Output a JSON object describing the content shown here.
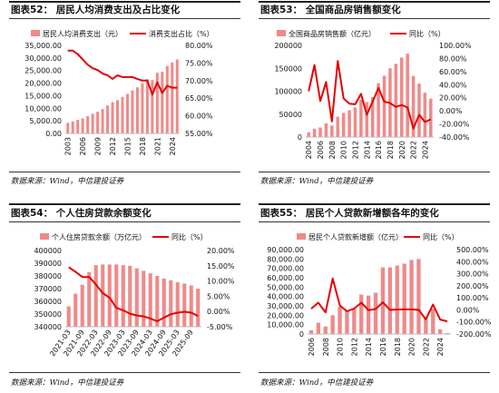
{
  "charts": [
    {
      "title": "图表52：  居民人均消费支出及占比变化",
      "source": "数据来源：Wind，中信建投证券",
      "chart_data": {
        "type": "bar",
        "legend": [
          "居民人均消费支出（元）",
          "消费支出占比（%）"
        ],
        "x": [
          2003,
          2004,
          2005,
          2006,
          2007,
          2008,
          2009,
          2010,
          2011,
          2012,
          2013,
          2014,
          2015,
          2016,
          2017,
          2018,
          2019,
          2020,
          2021,
          2022,
          2023,
          2024,
          2025
        ],
        "xticks": [
          "2003",
          "2006",
          "2009",
          "2012",
          "2015",
          "2018",
          "2021",
          "2024"
        ],
        "series": [
          {
            "name": "居民人均消费支出（元）",
            "kind": "bar",
            "axis": "left",
            "values": [
              4200,
              4800,
              5400,
              6000,
              6900,
              7800,
              8600,
              9700,
              11100,
              12400,
              13220,
              14491,
              15712,
              17111,
              18322,
              19853,
              21559,
              21210,
              24100,
              24538,
              26796,
              28227,
              29400
            ]
          },
          {
            "name": "消费支出占比（%）",
            "kind": "line",
            "axis": "right",
            "values": [
              78.5,
              78.5,
              77.5,
              76.0,
              74.5,
              73.5,
              73.0,
              72.0,
              71.5,
              70.5,
              71.5,
              71.0,
              71.0,
              71.0,
              70.5,
              70.0,
              70.0,
              66.0,
              69.5,
              66.5,
              68.5,
              68.0,
              68.0
            ]
          }
        ],
        "ylim_left": [
          0,
          35000
        ],
        "yticks_left": [
          "0.00",
          "5,000.00",
          "10,000.00",
          "15,000.00",
          "20,000.00",
          "25,000.00",
          "30,000.00",
          "35,000.00"
        ],
        "ylim_right": [
          55,
          80
        ],
        "yticks_right": [
          "55.00%",
          "60.00%",
          "65.00%",
          "70.00%",
          "75.00%",
          "80.00%"
        ]
      }
    },
    {
      "title": "图表53：  全国商品房销售额变化",
      "source": "数据来源：Wind，中信建投证券",
      "chart_data": {
        "type": "bar",
        "legend": [
          "全国商品房销售额（亿元）",
          "同比（%）"
        ],
        "x": [
          2004,
          2005,
          2006,
          2007,
          2008,
          2009,
          2010,
          2011,
          2012,
          2013,
          2014,
          2015,
          2016,
          2017,
          2018,
          2019,
          2020,
          2021,
          2022,
          2023,
          2024,
          2025
        ],
        "xticks": [
          "2004",
          "2006",
          "2008",
          "2010",
          "2012",
          "2014",
          "2016",
          "2018",
          "2020",
          "2022",
          "2024"
        ],
        "series": [
          {
            "name": "全国商品房销售额（亿元）",
            "kind": "bar",
            "axis": "left",
            "values": [
              10376,
              18080,
              20826,
              29889,
              25068,
              44355,
              52721,
              58589,
              64456,
              81428,
              76292,
              87281,
              117627,
              133701,
              149973,
              159725,
              173613,
              181930,
              133308,
              116622,
              96750,
              83900
            ]
          },
          {
            "name": "同比（%）",
            "kind": "line",
            "axis": "right",
            "values": [
              30,
              70,
              15,
              44,
              -16,
              76,
              19,
              11,
              10,
              26,
              -6,
              14,
              35,
              14,
              12,
              6,
              9,
              5,
              -27,
              -6,
              -17,
              -13
            ]
          }
        ],
        "ylim_left": [
          0,
          200000
        ],
        "yticks_left": [
          "0",
          "50000",
          "100000",
          "150000",
          "200000"
        ],
        "ylim_right": [
          -40,
          100
        ],
        "yticks_right": [
          "-40.00%",
          "-20.00%",
          "0.00%",
          "20.00%",
          "40.00%",
          "60.00%",
          "80.00%",
          "100.00%"
        ]
      }
    },
    {
      "title": "图表54：  个人住房贷款余额变化",
      "source": "数据来源：Wind，中信建投证券",
      "chart_data": {
        "type": "bar",
        "legend": [
          "个人住房贷款余额（万亿元）",
          "同比（%）"
        ],
        "x": [
          "2021-03",
          "2021-06",
          "2021-09",
          "2021-12",
          "2022-03",
          "2022-06",
          "2022-09",
          "2022-12",
          "2023-03",
          "2023-06",
          "2023-09",
          "2023-12",
          "2024-03",
          "2024-06",
          "2024-09",
          "2024-12",
          "2025-03",
          "2025-06",
          "2025-09",
          "2025-12"
        ],
        "xticks": [
          "2021-03",
          "2021-09",
          "2022-03",
          "2022-09",
          "2023-03",
          "2023-09",
          "2024-03",
          "2024-09",
          "2025-03",
          "2025-09"
        ],
        "series": [
          {
            "name": "个人住房贷款余额（万亿元）",
            "kind": "bar",
            "axis": "left",
            "values": [
              356000,
              366000,
              373000,
              383000,
              388500,
              389000,
              389000,
              389000,
              388500,
              388000,
              386000,
              384000,
              382000,
              380000,
              378000,
              376500,
              375000,
              374000,
              372500,
              370000
            ]
          },
          {
            "name": "同比（%）",
            "kind": "line",
            "axis": "right",
            "values": [
              14.5,
              13.0,
              11.3,
              11.3,
              8.8,
              6.0,
              4.5,
              1.2,
              0.4,
              -0.7,
              -1.3,
              -1.6,
              -2.3,
              -3.2,
              -2.0,
              -0.9,
              -0.4,
              -0.1,
              -0.4,
              -1.5
            ]
          }
        ],
        "ylim_left": [
          340000,
          400000
        ],
        "yticks_left": [
          "340000",
          "350000",
          "360000",
          "370000",
          "380000",
          "390000",
          "400000"
        ],
        "ylim_right": [
          -5,
          20
        ],
        "yticks_right": [
          "-5.00%",
          "0.00%",
          "5.00%",
          "10.00%",
          "15.00%",
          "20.00%"
        ]
      }
    },
    {
      "title": "图表55：  居民个人贷款新增额各年的变化",
      "source": "数据来源：Wind，中信建投证券",
      "chart_data": {
        "type": "bar",
        "legend": [
          "居民个人贷款新增额（亿元）",
          "同比（%）"
        ],
        "x": [
          2006,
          2007,
          2008,
          2009,
          2010,
          2011,
          2012,
          2013,
          2014,
          2015,
          2016,
          2017,
          2018,
          2019,
          2020,
          2021,
          2022,
          2023,
          2024,
          2025
        ],
        "xticks": [
          "2006",
          "2008",
          "2010",
          "2012",
          "2014",
          "2016",
          "2018",
          "2020",
          "2022",
          "2024"
        ],
        "series": [
          {
            "name": "居民个人贷款新增额（亿元）",
            "kind": "bar",
            "axis": "left",
            "values": [
              4000,
              12000,
              8000,
              20000,
              29000,
              25000,
              27000,
              42000,
              41000,
              44000,
              71000,
              71000,
              73000,
              75000,
              79000,
              80000,
              18000,
              27000,
              5000,
              1000
            ]
          },
          {
            "name": "同比（%）",
            "kind": "line",
            "axis": "right",
            "values": [
              10,
              60,
              -20,
              260,
              36,
              -12,
              11,
              60,
              -3,
              8,
              63,
              0,
              3,
              4,
              4,
              0,
              -78,
              45,
              -80,
              -95
            ]
          }
        ],
        "ylim_left": [
          0,
          90000
        ],
        "yticks_left": [
          "0",
          "10,000.00",
          "20,000.00",
          "30,000.00",
          "40,000.00",
          "50,000.00",
          "60,000.00",
          "70,000.00",
          "80,000.00",
          "90,000.00"
        ],
        "ylim_right": [
          -200,
          500
        ],
        "yticks_right": [
          "-200.00%",
          "-100.00%",
          "0.00%",
          "100.00%",
          "200.00%",
          "300.00%",
          "400.00%",
          "500.00%"
        ]
      }
    }
  ],
  "colors": {
    "bar": "#ef8a8a",
    "line": "#e60000",
    "text": "#111111",
    "rule": "#222222"
  }
}
